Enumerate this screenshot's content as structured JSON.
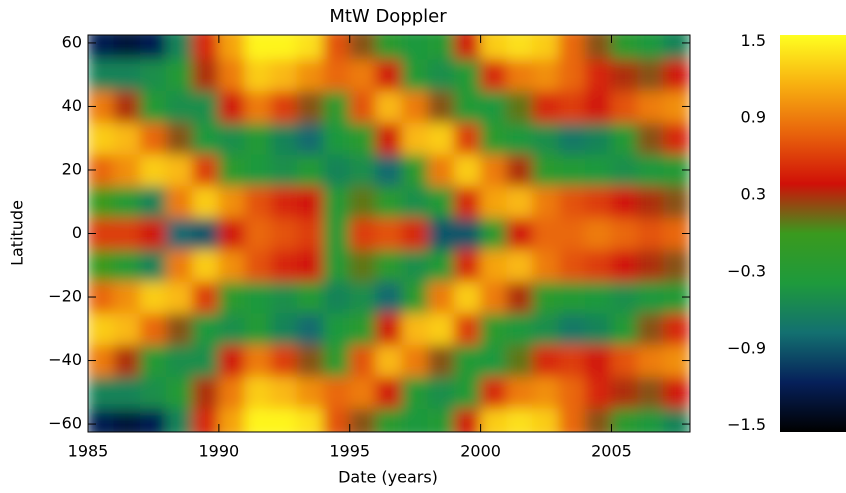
{
  "chart_data": {
    "type": "heatmap",
    "title": "MtW Doppler",
    "xlabel": "Date (years)",
    "ylabel": "Latitude",
    "x": [
      1985,
      1986,
      1987,
      1988,
      1989,
      1990,
      1991,
      1992,
      1993,
      1994,
      1995,
      1996,
      1997,
      1998,
      1999,
      2000,
      2001,
      2002,
      2003,
      2004,
      2005,
      2006,
      2007
    ],
    "y": [
      -60,
      -50,
      -40,
      -30,
      -20,
      -10,
      0,
      10,
      20,
      30,
      40,
      50,
      60
    ],
    "z": [
      [
        -1.2,
        -1.3,
        -1.2,
        -0.6,
        0.5,
        1.1,
        1.5,
        1.5,
        1.4,
        0.7,
        0.2,
        -0.2,
        -0.4,
        -0.3,
        0.4,
        1.3,
        1.4,
        1.3,
        0.8,
        0.2,
        -0.2,
        -0.4,
        -0.6
      ],
      [
        -0.6,
        -0.6,
        -0.5,
        -0.3,
        0.3,
        0.9,
        1.3,
        1.2,
        1.0,
        0.8,
        0.9,
        0.4,
        -0.3,
        -0.5,
        -0.3,
        0.5,
        0.9,
        1.0,
        0.8,
        0.5,
        0.3,
        0.2,
        0.4
      ],
      [
        0.9,
        0.3,
        -0.3,
        -0.5,
        -0.5,
        0.4,
        0.9,
        0.6,
        0.2,
        -0.2,
        0.7,
        1.2,
        0.9,
        0.2,
        -0.3,
        -0.4,
        0.1,
        0.5,
        0.6,
        0.4,
        0.7,
        0.9,
        1.0
      ],
      [
        1.3,
        1.2,
        0.8,
        0.2,
        -0.4,
        -0.5,
        -0.3,
        -0.6,
        -0.8,
        -0.4,
        -0.2,
        0.4,
        1.2,
        1.3,
        0.6,
        -0.2,
        -0.4,
        -0.5,
        -0.7,
        -0.6,
        -0.3,
        0.2,
        0.5
      ],
      [
        0.8,
        1.0,
        1.3,
        1.2,
        0.6,
        -0.2,
        -0.4,
        -0.5,
        -0.3,
        -0.6,
        -0.5,
        -0.8,
        -0.2,
        0.9,
        1.3,
        0.9,
        0.3,
        -0.2,
        -0.3,
        -0.4,
        -0.5,
        -0.4,
        -0.3
      ],
      [
        0.0,
        -0.3,
        -0.6,
        0.9,
        1.3,
        1.0,
        0.7,
        0.5,
        0.4,
        -0.3,
        0.1,
        -0.2,
        -0.5,
        -0.3,
        0.5,
        1.1,
        1.2,
        0.9,
        0.7,
        0.6,
        0.4,
        0.3,
        0.2
      ],
      [
        0.6,
        0.6,
        0.4,
        -0.8,
        -0.9,
        0.4,
        0.8,
        0.7,
        0.6,
        -0.3,
        0.6,
        0.7,
        0.5,
        -0.9,
        -0.9,
        -0.2,
        0.4,
        0.8,
        0.8,
        0.9,
        0.8,
        0.7,
        0.8
      ],
      [
        0.0,
        -0.3,
        -0.6,
        0.9,
        1.3,
        1.0,
        0.7,
        0.5,
        0.4,
        -0.3,
        0.1,
        -0.2,
        -0.5,
        -0.3,
        0.5,
        1.1,
        1.2,
        0.9,
        0.7,
        0.6,
        0.4,
        0.3,
        0.2
      ],
      [
        0.8,
        1.0,
        1.3,
        1.2,
        0.6,
        -0.2,
        -0.4,
        -0.5,
        -0.3,
        -0.6,
        -0.5,
        -0.8,
        -0.2,
        0.9,
        1.3,
        0.9,
        0.3,
        -0.2,
        -0.3,
        -0.4,
        -0.5,
        -0.4,
        -0.3
      ],
      [
        1.3,
        1.2,
        0.8,
        0.2,
        -0.4,
        -0.5,
        -0.3,
        -0.6,
        -0.8,
        -0.4,
        -0.2,
        0.4,
        1.2,
        1.3,
        0.6,
        -0.2,
        -0.4,
        -0.5,
        -0.7,
        -0.6,
        -0.3,
        0.2,
        0.5
      ],
      [
        0.9,
        0.3,
        -0.3,
        -0.5,
        -0.5,
        0.4,
        0.9,
        0.6,
        0.2,
        -0.2,
        0.7,
        1.2,
        0.9,
        0.2,
        -0.3,
        -0.4,
        0.1,
        0.5,
        0.6,
        0.4,
        0.7,
        0.9,
        1.0
      ],
      [
        -0.6,
        -0.6,
        -0.5,
        -0.3,
        0.3,
        0.9,
        1.3,
        1.2,
        1.0,
        0.8,
        0.9,
        0.4,
        -0.3,
        -0.5,
        -0.3,
        0.5,
        0.9,
        1.0,
        0.8,
        0.5,
        0.3,
        0.2,
        0.4
      ],
      [
        -1.2,
        -1.3,
        -1.2,
        -0.6,
        0.5,
        1.1,
        1.5,
        1.5,
        1.4,
        0.7,
        0.2,
        -0.2,
        -0.4,
        -0.3,
        0.4,
        1.3,
        1.4,
        1.3,
        0.8,
        0.2,
        -0.2,
        -0.4,
        -0.6
      ]
    ],
    "xlim": [
      1985,
      2008
    ],
    "ylim": [
      -62.5,
      62.5
    ],
    "zlim": [
      -1.55,
      1.55
    ],
    "xticks": [
      1985,
      1990,
      1995,
      2000,
      2005
    ],
    "yticks": [
      {
        "value": -60,
        "label": "−60"
      },
      {
        "value": -40,
        "label": "−40"
      },
      {
        "value": -20,
        "label": "−20"
      },
      0,
      20,
      40,
      60
    ],
    "colorbar_ticks": [
      {
        "value": -1.5,
        "label": "−1.5"
      },
      {
        "value": -0.9,
        "label": "−0.9"
      },
      {
        "value": -0.3,
        "label": "−0.3"
      },
      0.3,
      0.9,
      1.5
    ],
    "colorscale": [
      "#000000",
      "#06205a",
      "#137070",
      "#1e9a3c",
      "#3a9a1e",
      "#d01008",
      "#e8620c",
      "#f8b010",
      "#ffff20"
    ]
  }
}
